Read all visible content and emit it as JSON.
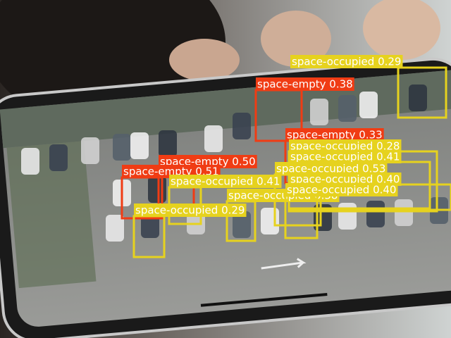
{
  "detections": [
    {
      "label": "space-occupied 0.29",
      "color": "#e6d21e"
    },
    {
      "label": "space-empty 0.38",
      "color": "#f03c14"
    },
    {
      "label": "space-empty 0.50",
      "color": "#f03c14"
    },
    {
      "label": "space-empty 0.33",
      "color": "#f03c14"
    },
    {
      "label": "space-occupied 0.28",
      "color": "#e6d21e"
    },
    {
      "label": "space-occupied 0.41",
      "color": "#e6d21e"
    },
    {
      "label": "space-empty 0.51",
      "color": "#f03c14"
    },
    {
      "label": "space-occupied 0.53",
      "color": "#e6d21e"
    },
    {
      "label": "space-occupied 0.41",
      "color": "#e6d21e"
    },
    {
      "label": "space-occupied 0.40",
      "color": "#e6d21e"
    },
    {
      "label": "space-occupied 0.38",
      "color": "#e6d21e"
    },
    {
      "label": "space-occupied 0.40",
      "color": "#e6d21e"
    },
    {
      "label": "space-occupied 0.29",
      "color": "#e6d21e"
    }
  ]
}
